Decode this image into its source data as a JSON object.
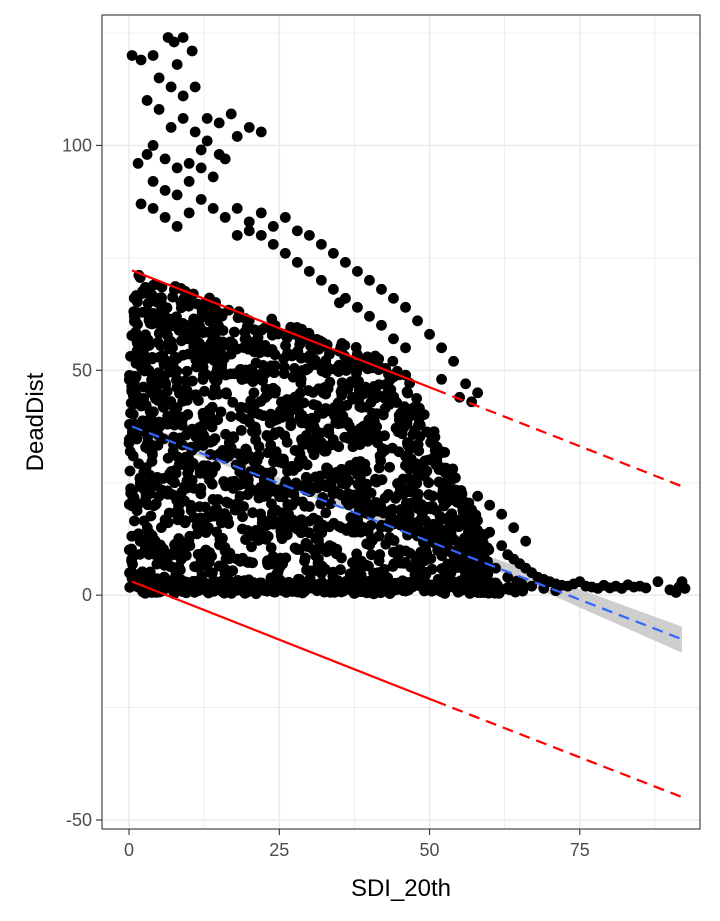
{
  "chart_data": {
    "type": "scatter",
    "title": "",
    "xlabel": "SDI_20th",
    "ylabel": "DeadDist",
    "xlim": [
      -4.5,
      95
    ],
    "ylim": [
      -52,
      129
    ],
    "x_ticks": [
      0,
      25,
      50,
      75
    ],
    "x_tick_labels": [
      "0",
      "25",
      "50",
      "75"
    ],
    "y_ticks": [
      -50,
      0,
      50,
      100
    ],
    "y_tick_labels": [
      "-50",
      "0",
      "50",
      "100"
    ],
    "grid": true,
    "legend": "none",
    "colors": {
      "points": "#000000",
      "fit_line": "#3366ff",
      "confidence_band": "#bebebe",
      "bound_lines": "#ff0000",
      "grid": "#ebebeb",
      "panel_border": "#333333"
    },
    "regression_line": {
      "style": "dashed",
      "x": [
        0.5,
        92
      ],
      "y": [
        37.5,
        -9.8
      ]
    },
    "confidence_band": {
      "x": [
        0.5,
        46,
        92
      ],
      "lower": [
        36.2,
        14.4,
        -12.8
      ],
      "upper": [
        38.8,
        15.4,
        -7.0
      ]
    },
    "upper_bound": {
      "solid_x": [
        0.5,
        51
      ],
      "solid_y": [
        72.2,
        45.7
      ],
      "dashed_x": [
        51,
        92
      ],
      "dashed_y": [
        45.7,
        24.2
      ]
    },
    "lower_bound": {
      "solid_x": [
        0.5,
        51
      ],
      "solid_y": [
        3.0,
        -23.6
      ],
      "dashed_x": [
        51,
        92
      ],
      "dashed_y": [
        -23.6,
        -44.9
      ]
    },
    "points_outlier": [
      [
        0.5,
        120
      ],
      [
        2,
        119
      ],
      [
        4,
        120
      ],
      [
        6.5,
        124
      ],
      [
        7.5,
        123
      ],
      [
        9,
        124
      ],
      [
        10.5,
        121
      ],
      [
        8,
        118
      ],
      [
        5,
        115
      ],
      [
        7,
        113
      ],
      [
        9,
        111
      ],
      [
        11,
        113
      ],
      [
        3,
        110
      ],
      [
        5,
        108
      ],
      [
        7,
        104
      ],
      [
        9,
        106
      ],
      [
        11,
        103
      ],
      [
        13,
        106
      ],
      [
        15,
        105
      ],
      [
        17,
        107
      ],
      [
        13,
        101
      ],
      [
        15,
        98
      ],
      [
        18,
        102
      ],
      [
        20,
        104
      ],
      [
        22,
        103
      ],
      [
        12,
        99
      ],
      [
        10,
        96
      ],
      [
        8,
        95
      ],
      [
        6,
        97
      ],
      [
        4,
        100
      ],
      [
        3,
        98
      ],
      [
        1.5,
        96
      ],
      [
        4,
        92
      ],
      [
        6,
        90
      ],
      [
        8,
        89
      ],
      [
        10,
        92
      ],
      [
        12,
        95
      ],
      [
        14,
        93
      ],
      [
        16,
        97
      ],
      [
        2,
        87
      ],
      [
        4,
        86
      ],
      [
        6,
        84
      ],
      [
        8,
        82
      ],
      [
        10,
        85
      ],
      [
        12,
        88
      ],
      [
        14,
        86
      ],
      [
        16,
        84
      ],
      [
        18,
        86
      ],
      [
        20,
        83
      ],
      [
        22,
        85
      ],
      [
        24,
        82
      ],
      [
        26,
        84
      ],
      [
        28,
        81
      ],
      [
        30,
        80
      ],
      [
        32,
        78
      ],
      [
        34,
        76
      ],
      [
        36,
        74
      ],
      [
        38,
        72
      ],
      [
        40,
        70
      ],
      [
        42,
        68
      ],
      [
        44,
        66
      ],
      [
        46,
        64
      ],
      [
        48,
        61
      ],
      [
        50,
        58
      ],
      [
        52,
        55
      ],
      [
        54,
        52
      ],
      [
        56,
        47
      ],
      [
        58,
        45
      ],
      [
        46,
        55
      ],
      [
        44,
        57
      ],
      [
        42,
        60
      ],
      [
        40,
        62
      ],
      [
        38,
        64
      ],
      [
        36,
        66
      ],
      [
        34,
        68
      ],
      [
        32,
        70
      ],
      [
        30,
        72
      ],
      [
        28,
        74
      ],
      [
        26,
        76
      ],
      [
        24,
        78
      ],
      [
        22,
        80
      ],
      [
        20,
        81
      ],
      [
        18,
        80
      ],
      [
        35,
        65
      ],
      [
        45,
        49
      ],
      [
        52,
        48
      ],
      [
        55,
        44
      ],
      [
        57,
        43
      ]
    ],
    "points_tail": [
      [
        60,
        14
      ],
      [
        62,
        11
      ],
      [
        63,
        9
      ],
      [
        64,
        8
      ],
      [
        65,
        7
      ],
      [
        66,
        6
      ],
      [
        67,
        5
      ],
      [
        68,
        4
      ],
      [
        69,
        3.5
      ],
      [
        70,
        3
      ],
      [
        71,
        2.5
      ],
      [
        72,
        2.2
      ],
      [
        73,
        2
      ],
      [
        74,
        2.5
      ],
      [
        75,
        3
      ],
      [
        76,
        2
      ],
      [
        77,
        1.8
      ],
      [
        78,
        1.5
      ],
      [
        79,
        2.2
      ],
      [
        80,
        1.6
      ],
      [
        81,
        2
      ],
      [
        82,
        1.5
      ],
      [
        83,
        2.3
      ],
      [
        84,
        1.8
      ],
      [
        85,
        2
      ],
      [
        86,
        1.6
      ],
      [
        88,
        3
      ],
      [
        90,
        1.2
      ],
      [
        91,
        0.6
      ],
      [
        91.5,
        1.8
      ],
      [
        92,
        3
      ],
      [
        92.5,
        1.5
      ],
      [
        61,
        6
      ],
      [
        63,
        4
      ],
      [
        65,
        3
      ],
      [
        67,
        2
      ],
      [
        69,
        1.5
      ],
      [
        71,
        1
      ],
      [
        66,
        12
      ],
      [
        64,
        15
      ],
      [
        62,
        18
      ],
      [
        60,
        20
      ],
      [
        58,
        22
      ]
    ],
    "dense_cloud": {
      "description_points_count": 1800,
      "x_range": [
        0,
        60
      ],
      "y_range": [
        0,
        75
      ]
    }
  }
}
